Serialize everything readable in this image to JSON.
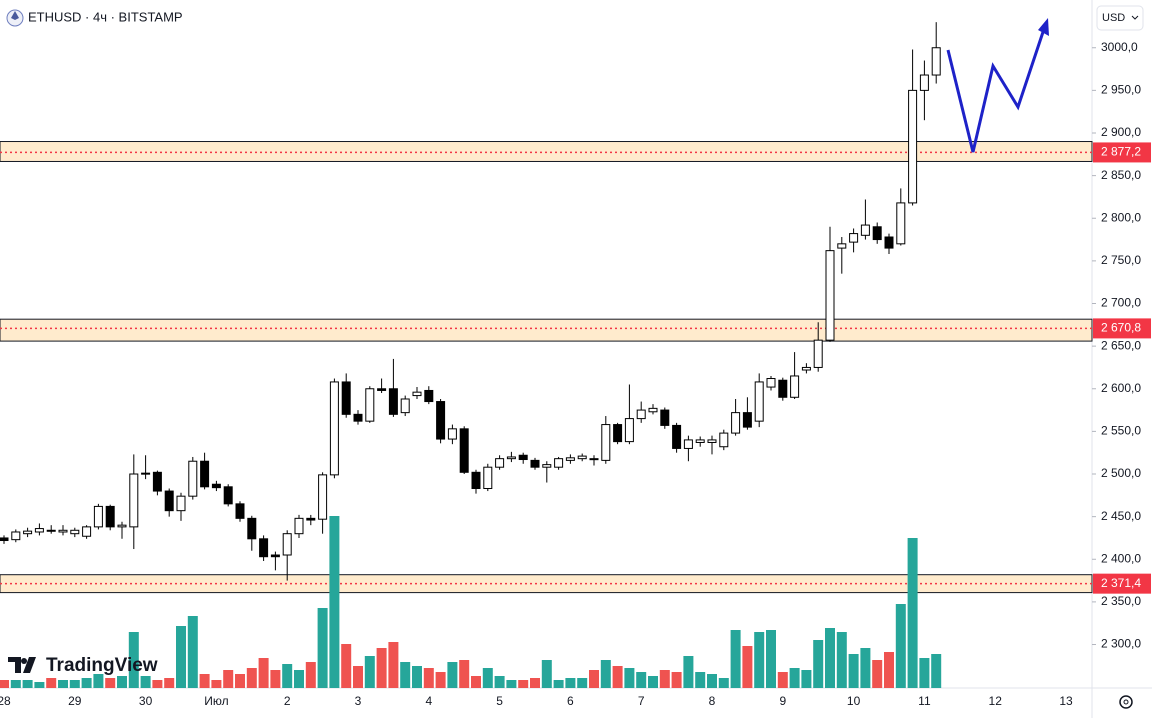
{
  "chart_data": {
    "type": "candlestick",
    "title": "ETHUSD · 4ч · BITSTAMP",
    "currency": "USD",
    "brand": "TradingView",
    "categories": [
      "28",
      null,
      null,
      null,
      null,
      null,
      "29",
      null,
      null,
      null,
      null,
      null,
      "30",
      null,
      null,
      null,
      null,
      null,
      "Июл",
      null,
      null,
      null,
      null,
      null,
      "2",
      null,
      null,
      null,
      null,
      null,
      "3",
      null,
      null,
      null,
      null,
      null,
      "4",
      null,
      null,
      null,
      null,
      null,
      "5",
      null,
      null,
      null,
      null,
      null,
      "6",
      null,
      null,
      null,
      null,
      null,
      "7",
      null,
      null,
      null,
      null,
      null,
      "8",
      null,
      null,
      null,
      null,
      null,
      "9",
      null,
      null,
      null,
      null,
      null,
      "10",
      null,
      null,
      null,
      null,
      null,
      "11",
      null,
      null,
      null,
      null,
      null,
      "12",
      null,
      null,
      null,
      null,
      null,
      "13"
    ],
    "open": [
      2425,
      2423,
      2430,
      2432,
      2434,
      2432,
      2430,
      2427,
      2438,
      2462,
      2438,
      2438,
      2500,
      2502,
      2480,
      2457,
      2474,
      2515,
      2488,
      2485,
      2465,
      2448,
      2424,
      2405,
      2405,
      2430,
      2448,
      2447,
      2499,
      2608,
      2570,
      2562,
      2600,
      2600,
      2572,
      2592,
      2598,
      2585,
      2541,
      2553,
      2502,
      2483,
      2508,
      2518,
      2522,
      2516,
      2508,
      2508,
      2516,
      2518,
      2518,
      2516,
      2558,
      2538,
      2565,
      2573,
      2575,
      2557,
      2530,
      2537,
      2537,
      2532,
      2548,
      2572,
      2562,
      2602,
      2610,
      2590,
      2622,
      2625,
      2657,
      2765,
      2772,
      2780,
      2790,
      2778,
      2770,
      2818,
      2950,
      2968,
      null,
      null,
      null,
      null,
      null,
      null,
      null,
      null,
      null,
      null,
      null
    ],
    "high": [
      2428,
      2435,
      2437,
      2442,
      2440,
      2440,
      2437,
      2440,
      2465,
      2464,
      2444,
      2523,
      2522,
      2504,
      2483,
      2478,
      2520,
      2525,
      2492,
      2488,
      2468,
      2451,
      2428,
      2409,
      2434,
      2452,
      2452,
      2502,
      2612,
      2618,
      2575,
      2603,
      2612,
      2635,
      2592,
      2602,
      2603,
      2588,
      2558,
      2556,
      2505,
      2512,
      2522,
      2526,
      2525,
      2519,
      2515,
      2520,
      2523,
      2524,
      2522,
      2568,
      2560,
      2605,
      2585,
      2582,
      2578,
      2560,
      2545,
      2544,
      2545,
      2552,
      2588,
      2590,
      2618,
      2615,
      2613,
      2643,
      2630,
      2678,
      2790,
      2778,
      2788,
      2822,
      2795,
      2782,
      2835,
      2998,
      2985,
      3030,
      null,
      null,
      null,
      null,
      null,
      null,
      null,
      null,
      null,
      null,
      null
    ],
    "low": [
      2418,
      2420,
      2426,
      2428,
      2430,
      2428,
      2426,
      2424,
      2435,
      2434,
      2424,
      2412,
      2494,
      2475,
      2450,
      2445,
      2470,
      2482,
      2480,
      2462,
      2444,
      2410,
      2398,
      2387,
      2375,
      2425,
      2440,
      2430,
      2495,
      2566,
      2558,
      2560,
      2595,
      2567,
      2568,
      2588,
      2582,
      2536,
      2535,
      2500,
      2477,
      2480,
      2505,
      2514,
      2512,
      2505,
      2490,
      2505,
      2512,
      2515,
      2510,
      2512,
      2535,
      2535,
      2560,
      2570,
      2553,
      2525,
      2515,
      2532,
      2523,
      2528,
      2545,
      2552,
      2555,
      2598,
      2586,
      2588,
      2618,
      2620,
      2655,
      2735,
      2760,
      2775,
      2770,
      2758,
      2768,
      2815,
      2915,
      2958,
      null,
      null,
      null,
      null,
      null,
      null,
      null,
      null,
      null,
      null,
      null
    ],
    "close": [
      2422,
      2432,
      2433,
      2436,
      2433,
      2434,
      2434,
      2438,
      2462,
      2438,
      2440,
      2500,
      2501,
      2480,
      2457,
      2474,
      2515,
      2485,
      2484,
      2465,
      2448,
      2424,
      2403,
      2403,
      2430,
      2448,
      2446,
      2499,
      2608,
      2570,
      2562,
      2600,
      2598,
      2570,
      2588,
      2596,
      2585,
      2541,
      2553,
      2502,
      2483,
      2508,
      2518,
      2520,
      2517,
      2508,
      2511,
      2518,
      2519,
      2521,
      2517,
      2558,
      2538,
      2565,
      2575,
      2577,
      2557,
      2530,
      2540,
      2540,
      2540,
      2548,
      2572,
      2555,
      2608,
      2612,
      2590,
      2615,
      2625,
      2657,
      2762,
      2770,
      2782,
      2792,
      2775,
      2765,
      2818,
      2950,
      2968,
      3000,
      null,
      null,
      null,
      null,
      null,
      null,
      null,
      null,
      null,
      null,
      null
    ],
    "volume": [
      8,
      8,
      8,
      6,
      10,
      8,
      8,
      10,
      14,
      10,
      12,
      56,
      12,
      8,
      10,
      62,
      72,
      14,
      8,
      18,
      14,
      20,
      30,
      18,
      24,
      18,
      26,
      80,
      172,
      44,
      22,
      32,
      40,
      46,
      26,
      22,
      20,
      16,
      26,
      28,
      12,
      20,
      12,
      8,
      8,
      10,
      28,
      8,
      10,
      10,
      18,
      28,
      22,
      20,
      16,
      12,
      18,
      16,
      32,
      16,
      14,
      10,
      58,
      42,
      56,
      58,
      16,
      20,
      18,
      48,
      60,
      56,
      34,
      40,
      28,
      36,
      84,
      150,
      30,
      34,
      null,
      null,
      null,
      null,
      null,
      null,
      null,
      null,
      null,
      null,
      null
    ],
    "up_color": "#ffffff",
    "down_color": "#000000",
    "volume_up_color": "#26a69a",
    "volume_down_color": "#ef5350",
    "ylim": [
      2249,
      3056
    ],
    "volume_ylim": [
      0,
      688
    ],
    "yticks": [
      {
        "value": 2300,
        "label": "2 300,0"
      },
      {
        "value": 2350,
        "label": "2 350,0"
      },
      {
        "value": 2400,
        "label": "2 400,0"
      },
      {
        "value": 2450,
        "label": "2 450,0"
      },
      {
        "value": 2500,
        "label": "2 500,0"
      },
      {
        "value": 2550,
        "label": "2 550,0"
      },
      {
        "value": 2600,
        "label": "2 600,0"
      },
      {
        "value": 2650,
        "label": "2 650,0"
      },
      {
        "value": 2700,
        "label": "2 700,0"
      },
      {
        "value": 2750,
        "label": "2 750,0"
      },
      {
        "value": 2800,
        "label": "2 800,0"
      },
      {
        "value": 2850,
        "label": "2 850,0"
      },
      {
        "value": 2900,
        "label": "2 900,0"
      },
      {
        "value": 2950,
        "label": "2 950,0"
      },
      {
        "value": 3000,
        "label": "3000,0"
      }
    ],
    "level_color": "#f23645",
    "levels": [
      {
        "value": 2877.2,
        "label": "2 877,2",
        "low": 2866.6,
        "high": 2890
      },
      {
        "value": 2670.8,
        "label": "2 670,8",
        "low": 2655.9,
        "high": 2681.6
      },
      {
        "value": 2371.4,
        "label": "2 371,4",
        "low": 2360.9,
        "high": 2381.9
      }
    ]
  }
}
